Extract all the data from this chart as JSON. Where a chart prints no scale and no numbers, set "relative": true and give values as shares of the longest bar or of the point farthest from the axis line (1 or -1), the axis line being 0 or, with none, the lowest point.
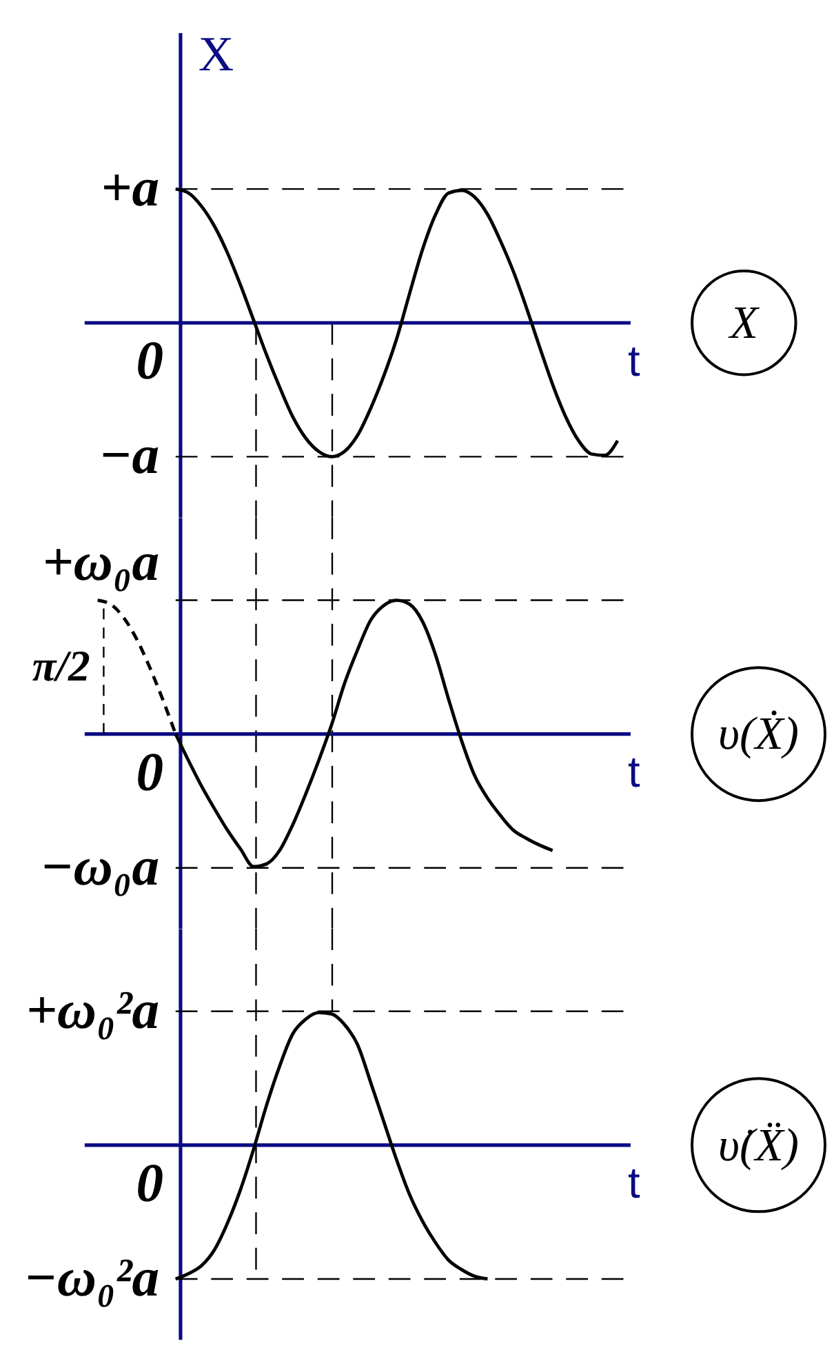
{
  "chart_data": [
    {
      "type": "line",
      "relative": true,
      "xlabel": "t",
      "ylabel": "X",
      "categories": [
        null,
        null,
        null,
        null,
        null,
        null,
        null,
        null,
        null,
        null,
        null,
        null,
        null,
        null,
        null,
        null,
        null,
        null,
        null,
        null,
        null,
        null,
        null,
        null,
        null,
        null,
        null,
        null,
        null,
        null,
        null,
        null,
        null,
        null,
        null,
        null,
        null,
        null,
        null,
        null,
        null
      ],
      "ref_lines": [
        {
          "axis": "y",
          "value": 1,
          "label": "+a",
          "color": "#000000",
          "line_style": "dashed"
        },
        {
          "axis": "y",
          "value": -1,
          "label": "−a",
          "color": "#000000",
          "line_style": "dashed"
        },
        {
          "axis": "y",
          "value": 0,
          "color": "#0b0b84",
          "line_style": "solid"
        }
      ],
      "annotations": [
        "0",
        "X"
      ],
      "series": [
        {
          "color": "#000000",
          "values": [
            null,
            null,
            null,
            null,
            null,
            null,
            1,
            0.97,
            0.87,
            0.72,
            0.52,
            0.28,
            0.02,
            -0.24,
            -0.48,
            -0.7,
            -0.86,
            -0.96,
            -1,
            -0.96,
            -0.84,
            -0.64,
            -0.4,
            -0.12,
            0.22,
            0.55,
            0.81,
            0.97,
            0.99,
            0.94,
            0.81,
            0.61,
            0.38,
            0.11,
            -0.18,
            -0.46,
            -0.7,
            -0.88,
            -0.98,
            -0.99,
            -0.88
          ]
        }
      ]
    },
    {
      "type": "line",
      "relative": true,
      "xlabel": "t",
      "categories": [
        null,
        null,
        null,
        null,
        null,
        null,
        null,
        null,
        null,
        null,
        null,
        null,
        null,
        null,
        null,
        null,
        null,
        null,
        null,
        null,
        null,
        null,
        null,
        null,
        null,
        null,
        null,
        null,
        null,
        null,
        null,
        null,
        null,
        null,
        null,
        null,
        null,
        null,
        null,
        null,
        null
      ],
      "ref_lines": [
        {
          "axis": "y",
          "value": 1,
          "label": "+ω₀a",
          "color": "#000000",
          "line_style": "dashed"
        },
        {
          "axis": "y",
          "value": -1,
          "label": "−ω₀a",
          "color": "#000000",
          "line_style": "dashed"
        },
        {
          "axis": "y",
          "value": 0,
          "color": "#0b0b84",
          "line_style": "solid"
        }
      ],
      "annotations": [
        "0",
        "π/2",
        "υ(Ẋ)"
      ],
      "series": [
        {
          "color": "#000000",
          "line_style": "dashed",
          "values": [
            1,
            0.97,
            0.87,
            0.71,
            0.5,
            0.26,
            0,
            null,
            null,
            null,
            null,
            null,
            null,
            null,
            null,
            null,
            null,
            null,
            null,
            null,
            null,
            null,
            null,
            null,
            null,
            null,
            null,
            null,
            null,
            null,
            null,
            null,
            null,
            null,
            null,
            null,
            null,
            null,
            null,
            null,
            null
          ]
        },
        {
          "color": "#000000",
          "values": [
            null,
            null,
            null,
            null,
            null,
            null,
            0,
            -0.2,
            -0.39,
            -0.56,
            -0.72,
            -0.86,
            -0.99,
            -0.97,
            -0.87,
            -0.68,
            -0.45,
            -0.2,
            0.07,
            0.38,
            0.63,
            0.85,
            0.96,
            1,
            0.97,
            0.84,
            0.59,
            0.26,
            -0.05,
            -0.31,
            -0.48,
            -0.61,
            -0.72,
            -0.78,
            -0.83,
            -0.87,
            null,
            null,
            null,
            null,
            null
          ]
        }
      ]
    },
    {
      "type": "line",
      "relative": true,
      "xlabel": "t",
      "categories": [
        null,
        null,
        null,
        null,
        null,
        null,
        null,
        null,
        null,
        null,
        null,
        null,
        null,
        null,
        null,
        null,
        null,
        null,
        null,
        null,
        null,
        null,
        null,
        null,
        null,
        null,
        null,
        null,
        null,
        null,
        null,
        null,
        null,
        null,
        null,
        null,
        null,
        null,
        null,
        null,
        null
      ],
      "ref_lines": [
        {
          "axis": "y",
          "value": 1,
          "label": "+ω₀²a",
          "color": "#000000",
          "line_style": "dashed"
        },
        {
          "axis": "y",
          "value": -1,
          "label": "−ω₀²a",
          "color": "#000000",
          "line_style": "dashed"
        },
        {
          "axis": "y",
          "value": 0,
          "color": "#0b0b84",
          "line_style": "solid"
        }
      ],
      "annotations": [
        "0",
        "υ̇(Ẍ)"
      ],
      "series": [
        {
          "color": "#000000",
          "values": [
            null,
            null,
            null,
            null,
            null,
            null,
            -1,
            -0.96,
            -0.9,
            -0.78,
            -0.58,
            -0.33,
            -0.03,
            0.3,
            0.59,
            0.83,
            0.94,
            0.99,
            0.98,
            0.9,
            0.75,
            0.47,
            0.18,
            -0.11,
            -0.37,
            -0.57,
            -0.73,
            -0.86,
            -0.93,
            -0.98,
            -1,
            null,
            null,
            null,
            null,
            null,
            null,
            null,
            null,
            null,
            null
          ]
        }
      ]
    }
  ]
}
